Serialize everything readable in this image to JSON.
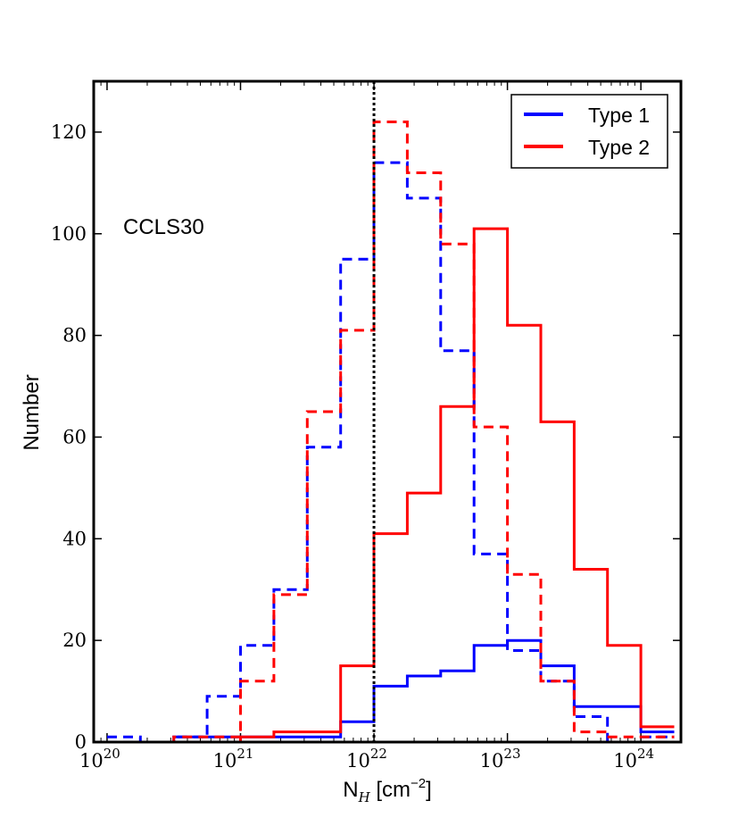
{
  "chart_data": {
    "type": "histogram-step",
    "title": "",
    "xlabel": "N",
    "xlabel_sub": "H",
    "xlabel_unit": " [cm",
    "xlabel_unit_exp": "−2",
    "xlabel_unit_close": "]",
    "ylabel": "Number",
    "xscale": "log",
    "xlim_log10": [
      19.9,
      24.3
    ],
    "ylim": [
      0,
      130
    ],
    "x_ticks": [
      {
        "base": "10",
        "exp": "20",
        "log10": 20
      },
      {
        "base": "10",
        "exp": "21",
        "log10": 21
      },
      {
        "base": "10",
        "exp": "22",
        "log10": 22
      },
      {
        "base": "10",
        "exp": "23",
        "log10": 23
      },
      {
        "base": "10",
        "exp": "24",
        "log10": 24
      }
    ],
    "y_ticks": [
      0,
      20,
      40,
      60,
      80,
      100,
      120
    ],
    "annotation": "CCLS30",
    "vertical_line_log10": 22,
    "bin_edges_log10": [
      20.0,
      20.25,
      20.5,
      20.75,
      21.0,
      21.25,
      21.5,
      21.75,
      22.0,
      22.25,
      22.5,
      22.75,
      23.0,
      23.25,
      23.5,
      23.75,
      24.0,
      24.25
    ],
    "series": [
      {
        "name": "Type 1 (solid)",
        "color": "#0000ff",
        "dash": "solid",
        "values": [
          0,
          0,
          1,
          1,
          1,
          1,
          1,
          4,
          11,
          13,
          14,
          19,
          20,
          15,
          7,
          7,
          2
        ]
      },
      {
        "name": "Type 2 (solid)",
        "color": "#ff0000",
        "dash": "solid",
        "values": [
          0,
          0,
          0,
          0,
          1,
          2,
          2,
          15,
          41,
          49,
          66,
          101,
          82,
          63,
          34,
          19,
          3
        ]
      },
      {
        "name": "Type 1 (dashed)",
        "color": "#0000ff",
        "dash": "dashed",
        "values": [
          1,
          0,
          1,
          9,
          19,
          30,
          58,
          95,
          114,
          107,
          77,
          37,
          18,
          12,
          5,
          0,
          1
        ]
      },
      {
        "name": "Type 2 (dashed)",
        "color": "#ff0000",
        "dash": "dashed",
        "values": [
          0,
          0,
          1,
          1,
          12,
          29,
          65,
          81,
          122,
          112,
          98,
          62,
          33,
          12,
          2,
          1,
          1
        ]
      }
    ],
    "legend": {
      "position": "top-right",
      "entries": [
        {
          "label": "Type 1",
          "color": "#0000ff"
        },
        {
          "label": "Type 2",
          "color": "#ff0000"
        }
      ]
    }
  }
}
